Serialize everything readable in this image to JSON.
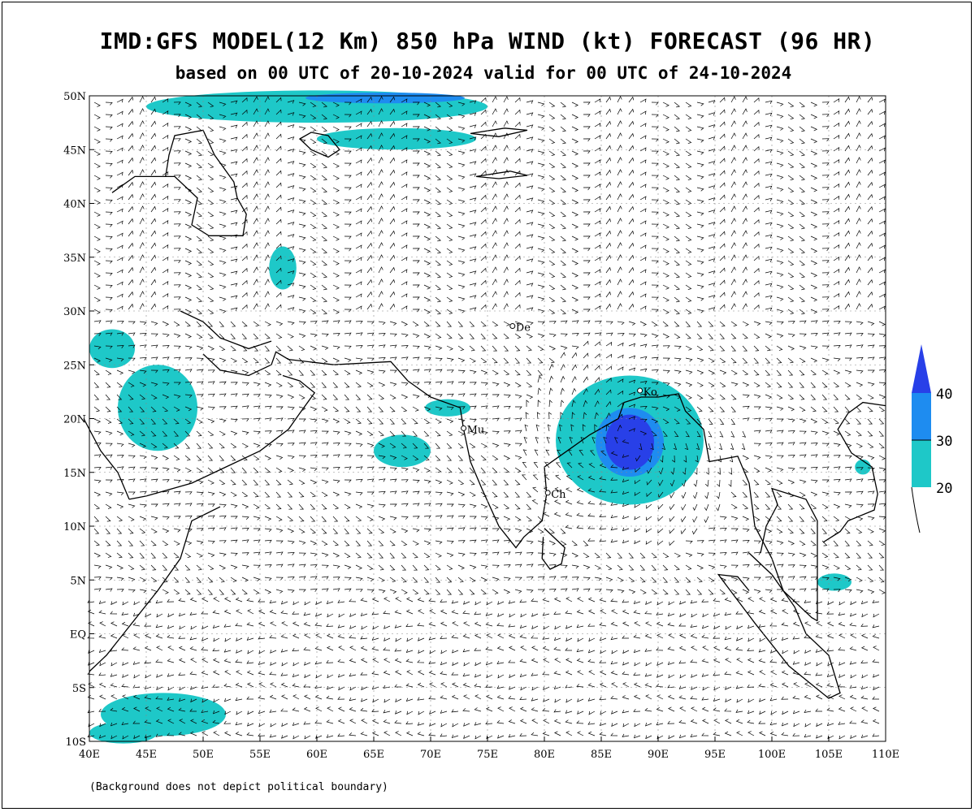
{
  "title": "IMD:GFS MODEL(12 Km) 850 hPa WIND (kt) FORECAST (96 HR)",
  "subtitle": "based on 00 UTC of 20-10-2024 valid for 00 UTC of 24-10-2024",
  "footnote": "(Background does not depict political boundary)",
  "lon_range": [
    40,
    110
  ],
  "lat_range": [
    -10,
    50
  ],
  "x_ticks": [
    "40E",
    "45E",
    "50E",
    "55E",
    "60E",
    "65E",
    "70E",
    "75E",
    "80E",
    "85E",
    "90E",
    "95E",
    "100E",
    "105E",
    "110E"
  ],
  "y_ticks": [
    "10S",
    "5S",
    "EQ",
    "5N",
    "10N",
    "15N",
    "20N",
    "25N",
    "30N",
    "35N",
    "40N",
    "45N",
    "50N"
  ],
  "colorbar": {
    "labels": [
      "40",
      "30",
      "20"
    ],
    "colors": {
      "c20": "#1ec8c8",
      "c30": "#1e8cf0",
      "c40": "#2840e8"
    }
  },
  "cities": [
    {
      "label": "De",
      "lon": 77.2,
      "lat": 28.6
    },
    {
      "label": "Ko",
      "lon": 88.4,
      "lat": 22.6
    },
    {
      "label": "Mu",
      "lon": 72.9,
      "lat": 19.1
    },
    {
      "label": "Ch",
      "lon": 80.3,
      "lat": 13.1
    }
  ],
  "cyclone_center": {
    "lon": 87.5,
    "lat": 17.8
  },
  "wind_speed_areas": [
    {
      "level": "20-30",
      "lon": 87.5,
      "lat": 18.0,
      "rx": 6.5,
      "ry": 6.0
    },
    {
      "level": "20-30",
      "lon": 60.0,
      "lat": 49.0,
      "rx": 15.0,
      "ry": 1.5
    },
    {
      "level": "20-30",
      "lon": 67.0,
      "lat": 46.0,
      "rx": 7.0,
      "ry": 1.0
    },
    {
      "level": "20-30",
      "lon": 46.0,
      "lat": 21.0,
      "rx": 3.5,
      "ry": 4.0
    },
    {
      "level": "20-30",
      "lon": 42.0,
      "lat": 26.5,
      "rx": 2.0,
      "ry": 1.8
    },
    {
      "level": "20-30",
      "lon": 67.5,
      "lat": 17.0,
      "rx": 2.5,
      "ry": 1.5
    },
    {
      "level": "20-30",
      "lon": 71.5,
      "lat": 21.0,
      "rx": 2.0,
      "ry": 0.8
    },
    {
      "level": "20-30",
      "lon": 46.5,
      "lat": -7.5,
      "rx": 5.5,
      "ry": 2.0
    },
    {
      "level": "20-30",
      "lon": 43.0,
      "lat": -9.2,
      "rx": 3.0,
      "ry": 1.0
    },
    {
      "level": "20-30",
      "lon": 57.0,
      "lat": 34.0,
      "rx": 1.2,
      "ry": 2.0
    },
    {
      "level": "20-30",
      "lon": 105.5,
      "lat": 4.8,
      "rx": 1.5,
      "ry": 0.8
    },
    {
      "level": "20-30",
      "lon": 108.0,
      "lat": 15.5,
      "rx": 0.7,
      "ry": 0.7
    },
    {
      "level": "30-40",
      "lon": 87.5,
      "lat": 17.8,
      "rx": 3.0,
      "ry": 3.2
    },
    {
      "level": "30-40",
      "lon": 66.0,
      "lat": 49.8,
      "rx": 7.0,
      "ry": 0.5
    }
  ]
}
